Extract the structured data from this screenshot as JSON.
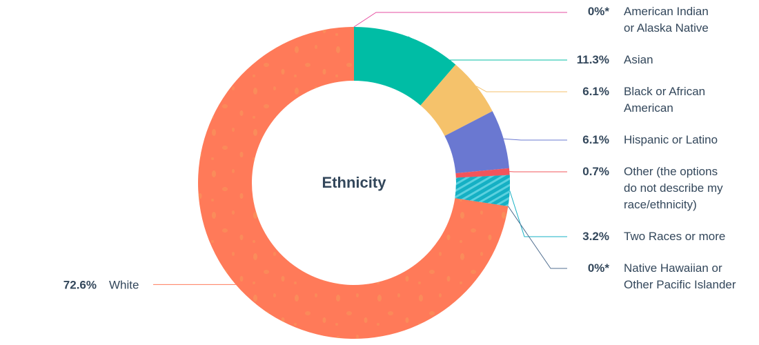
{
  "chart_data": {
    "type": "pie",
    "center_label": "Ethnicity",
    "slices": [
      {
        "name": "American Indian or Alaska Native",
        "label_lines": [
          "American Indian",
          "or Alaska Native"
        ],
        "value": 0,
        "value_label": "0%*",
        "color": "#e64ea0"
      },
      {
        "name": "Asian",
        "label_lines": [
          "Asian"
        ],
        "value": 11.3,
        "value_label": "11.3%",
        "color": "#00bda5"
      },
      {
        "name": "Black or African American",
        "label_lines": [
          "Black or African",
          "American"
        ],
        "value": 6.1,
        "value_label": "6.1%",
        "color": "#f5c26b"
      },
      {
        "name": "Hispanic or Latino",
        "label_lines": [
          "Hispanic or Latino"
        ],
        "value": 6.1,
        "value_label": "6.1%",
        "color": "#6a78d1"
      },
      {
        "name": "Other (the options do not describe my race/ethnicity)",
        "label_lines": [
          "Other (the options",
          "do not describe my",
          "race/ethnicity)"
        ],
        "value": 0.7,
        "value_label": "0.7%",
        "color": "#f2545b"
      },
      {
        "name": "Two Races or more",
        "label_lines": [
          "Two Races or more"
        ],
        "value": 3.2,
        "value_label": "3.2%",
        "color": "#15b0c4"
      },
      {
        "name": "Native Hawaiian or Other Pacific Islander",
        "label_lines": [
          "Native Hawaiian or",
          "Other Pacific Islander"
        ],
        "value": 0,
        "value_label": "0%*",
        "color": "#516f90"
      },
      {
        "name": "White",
        "label_lines": [
          "White"
        ],
        "value": 72.6,
        "value_label": "72.6%",
        "color": "#ff7a59"
      }
    ]
  }
}
